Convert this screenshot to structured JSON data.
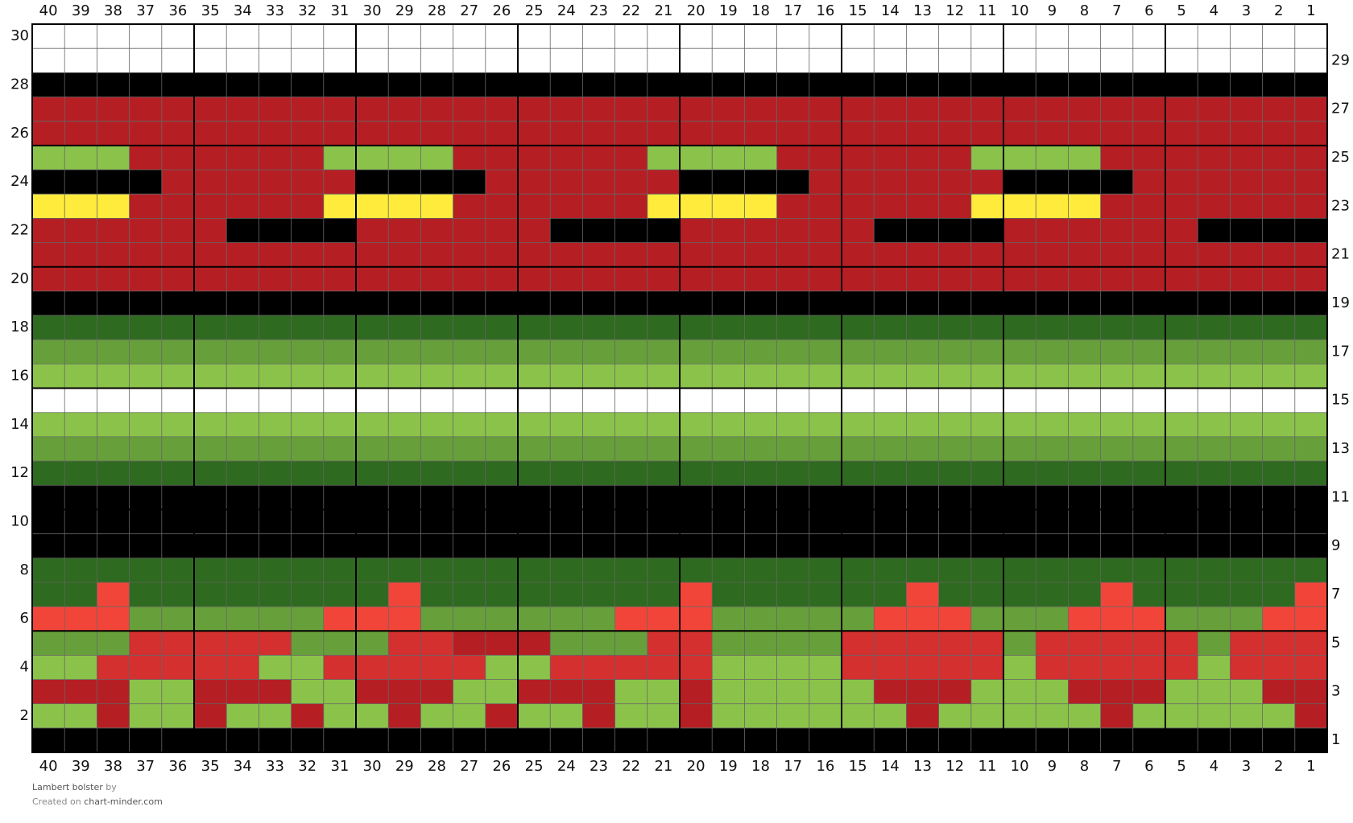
{
  "chart": {
    "columns": [
      40,
      39,
      38,
      37,
      36,
      35,
      34,
      33,
      32,
      31,
      30,
      29,
      28,
      27,
      26,
      25,
      24,
      23,
      22,
      21,
      20,
      19,
      18,
      17,
      16,
      15,
      14,
      13,
      12,
      11,
      10,
      9,
      8,
      7,
      6,
      5,
      4,
      3,
      2,
      1
    ],
    "rows": [
      30,
      29,
      28,
      27,
      26,
      25,
      24,
      23,
      22,
      21,
      20,
      19,
      18,
      17,
      16,
      15,
      14,
      13,
      12,
      11,
      10,
      9,
      8,
      7,
      6,
      5,
      4,
      3,
      2,
      1
    ],
    "palette": {
      "W": "#ffffff",
      "K": "#000000",
      "R": "#b51f24",
      "r": "#d3302f",
      "P": "#f2453a",
      "G": "#8bc34a",
      "M": "#67a03a",
      "D": "#2e6a1f",
      "Y": "#ffeb3b"
    },
    "grid": [
      "WWWWWWWWWWWWWWWWWWWWWWWWWWWWWWWWWWWWWWWW",
      "WWWWWWWWWWWWWWWWWWWWWWWWWWWWWWWWWWWWWWWW",
      "KKKKKKKKKKKKKKKKKKKKKKKKKKKKKKKKKKKKKKKK",
      "RRRRRRRRRRRRRRRRRRRRRRRRRRRRRRRRRRRRRRRR",
      "RRRRRRRRRRRRRRRRRRRRRRRRRRRRRRRRRRRRRRRR",
      "GGGRRRRRRGGGGRRRRRRGGGGRRRRRRGGGGRRRRRRR",
      "KKKKRRRRRRKKKKRRRRRRKKKKRRRRRRKKKKRRRRRR",
      "YYYRRRRRRYYYYRRRRRRYYYYRRRRRRYYYYRRRRRRR",
      "RRRRRRKKKKRRRRRRKKKKRRRRRRKKKKRRRRRRKKKK",
      "RRRRRRRRRRRRRRRRRRRRRRRRRRRRRRRRRRRRRRRR",
      "RRRRRRRRRRRRRRRRRRRRRRRRRRRRRRRRRRRRRRRR",
      "KKKKKKKKKKKKKKKKKKKKKKKKKKKKKKKKKKKKKKKK",
      "DDDDDDDDDDDDDDDDDDDDDDDDDDDDDDDDDDDDDDDD",
      "MMMMMMMMMMMMMMMMMMMMMMMMMMMMMMMMMMMMMMMM",
      "GGGGGGGGGGGGGGGGGGGGGGGGGGGGGGGGGGGGGGGG",
      "WWWWWWWWWWWWWWWWWWWWWWWWWWWWWWWWWWWWWWWW",
      "GGGGGGGGGGGGGGGGGGGGGGGGGGGGGGGGGGGGGGGG",
      "MMMMMMMMMMMMMMMMMMMMMMMMMMMMMMMMMMMMMMMM",
      "DDDDDDDDDDDDDDDDDDDDDDDDDDDDDDDDDDDDDDDD",
      "KKKKKKKKKKKKKKKKKKKKKKKKKKKKKKKKKKKKKKKK",
      "KKKKKKKKKKKKKKKKKKKKKKKKKKKKKKKKKKKKKKKK",
      "KKKKKKKKKKKKKKKKKKKKKKKKKKKKKKKKKKKKKKKK",
      "DDDDDDDDDDDDDDDDDDDDDDDDDDDDDDDDDDDDDDDD",
      "DDPDDDDDDDDPDDDDDDDDPDDDDDDPDDDDDPDDDDDP",
      "PPPMMMMMMPPPMMMMMMPPPMMMMMPPPMMMPPPMMMPP",
      "MMMrrrrrMMMrrRRRMMMrrMMMMrrrrrMrrrrrMrrr",
      "GGrrrrrGGrrrrrGGrrrrrGGGGrrrrrGrrrrrGrrr",
      "RRRGGRRRGGRRRGGRRRGGRGGGGGRRRGGGRRRGGGRR",
      "GGRGGRGGRGGRGGRGGRGGRGGGGGGRGGGGGRGGGGGR",
      "KKKKKKKKKKKKKKKKKKKKKKKKKKKKKKKKKKKKKKKK"
    ]
  },
  "footer": {
    "title": "Lambert bolster",
    "by": "by",
    "created_on": "Created on",
    "site": "chart-minder.com"
  }
}
